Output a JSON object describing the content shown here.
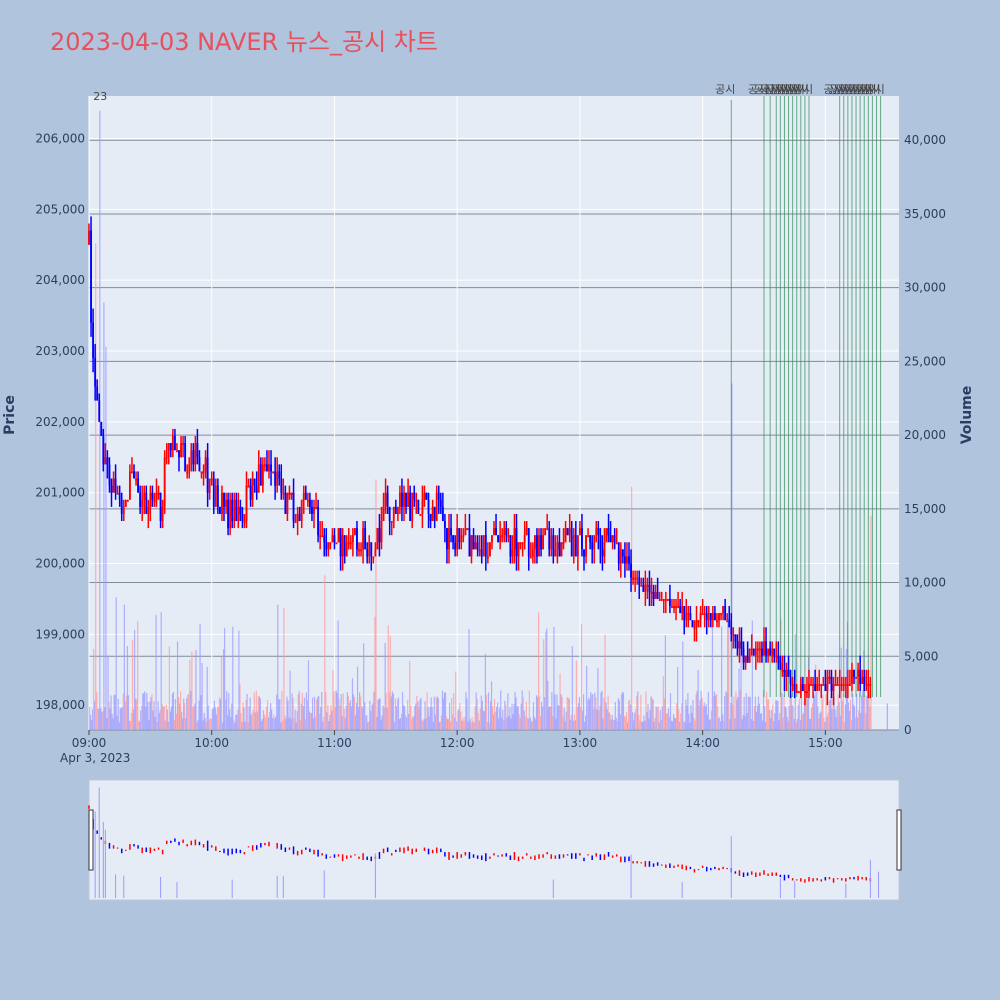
{
  "title": "2023-04-03 NAVER 뉴스_공시 차트",
  "chart_data": {
    "type": "candlestick",
    "title": "2023-04-03 NAVER 뉴스_공시 차트",
    "ylabel": "Price",
    "y2label": "Volume",
    "date_label": "Apr 3, 2023",
    "xlim": [
      "09:00",
      "15:36"
    ],
    "ylim": [
      197650,
      206600
    ],
    "y2lim": [
      0,
      43000
    ],
    "x_ticks": [
      "09:00",
      "10:00",
      "11:00",
      "12:00",
      "13:00",
      "14:00",
      "15:00"
    ],
    "y_ticks": [
      "198,000",
      "199,000",
      "200,000",
      "201,000",
      "202,000",
      "203,000",
      "204,000",
      "205,000",
      "206,000"
    ],
    "y2_ticks": [
      "0",
      "5,000",
      "10,000",
      "15,000",
      "20,000",
      "25,000",
      "30,000",
      "35,000",
      "40,000"
    ],
    "up_color": "#ff0000",
    "down_color": "#0000ff",
    "price_anchors": [
      [
        "09:00",
        204500
      ],
      [
        "09:01",
        203500
      ],
      [
        "09:02",
        203000
      ],
      [
        "09:04",
        202300
      ],
      [
        "09:06",
        201800
      ],
      [
        "09:10",
        201200
      ],
      [
        "09:15",
        200800
      ],
      [
        "09:20",
        201200
      ],
      [
        "09:25",
        200800
      ],
      [
        "09:35",
        200800
      ],
      [
        "09:38",
        201500
      ],
      [
        "09:42",
        201800
      ],
      [
        "09:48",
        201500
      ],
      [
        "09:55",
        201500
      ],
      [
        "10:00",
        201000
      ],
      [
        "10:08",
        200700
      ],
      [
        "10:15",
        200700
      ],
      [
        "10:22",
        201200
      ],
      [
        "10:30",
        201200
      ],
      [
        "10:38",
        200800
      ],
      [
        "10:50",
        200800
      ],
      [
        "10:55",
        200300
      ],
      [
        "11:05",
        200300
      ],
      [
        "11:20",
        200300
      ],
      [
        "11:25",
        200800
      ],
      [
        "11:50",
        200800
      ],
      [
        "11:55",
        200300
      ],
      [
        "13:00",
        200300
      ],
      [
        "13:18",
        200300
      ],
      [
        "13:25",
        199900
      ],
      [
        "13:35",
        199600
      ],
      [
        "13:45",
        199400
      ],
      [
        "13:55",
        199200
      ],
      [
        "14:05",
        199300
      ],
      [
        "14:10",
        199300
      ],
      [
        "14:15",
        199000
      ],
      [
        "14:20",
        198700
      ],
      [
        "14:30",
        198800
      ],
      [
        "14:35",
        198700
      ],
      [
        "14:40",
        198500
      ],
      [
        "14:45",
        198200
      ],
      [
        "14:55",
        198300
      ],
      [
        "15:05",
        198300
      ],
      [
        "15:15",
        198400
      ],
      [
        "15:22",
        198300
      ]
    ],
    "annotations": [
      {
        "time": "09:06",
        "text": "23",
        "kind": "news"
      },
      {
        "time": "14:14",
        "text": "공시",
        "kind": "disclosure"
      },
      {
        "time": "14:30",
        "text": "공시",
        "kind": "disclosure"
      },
      {
        "time": "14:33",
        "text": "공시",
        "kind": "disclosure"
      },
      {
        "time": "14:36",
        "text": "공시",
        "kind": "disclosure"
      },
      {
        "time": "14:38",
        "text": "공시",
        "kind": "disclosure"
      },
      {
        "time": "14:40",
        "text": "공시",
        "kind": "disclosure"
      },
      {
        "time": "14:42",
        "text": "공시",
        "kind": "disclosure"
      },
      {
        "time": "14:44",
        "text": "공시",
        "kind": "disclosure"
      },
      {
        "time": "14:46",
        "text": "공시",
        "kind": "disclosure"
      },
      {
        "time": "14:48",
        "text": "공시",
        "kind": "disclosure"
      },
      {
        "time": "14:50",
        "text": "공시",
        "kind": "disclosure"
      },
      {
        "time": "14:52",
        "text": "공시",
        "kind": "disclosure"
      },
      {
        "time": "15:07",
        "text": "공시",
        "kind": "disclosure"
      },
      {
        "time": "15:09",
        "text": "공시",
        "kind": "disclosure"
      },
      {
        "time": "15:11",
        "text": "공시",
        "kind": "disclosure"
      },
      {
        "time": "15:13",
        "text": "공시",
        "kind": "disclosure"
      },
      {
        "time": "15:15",
        "text": "공시",
        "kind": "disclosure"
      },
      {
        "time": "15:17",
        "text": "공시",
        "kind": "disclosure"
      },
      {
        "time": "15:19",
        "text": "공시",
        "kind": "disclosure"
      },
      {
        "time": "15:21",
        "text": "공시",
        "kind": "disclosure"
      },
      {
        "time": "15:23",
        "text": "공시",
        "kind": "disclosure"
      },
      {
        "time": "15:25",
        "text": "공시",
        "kind": "disclosure"
      },
      {
        "time": "15:27",
        "text": "공시",
        "kind": "disclosure"
      }
    ],
    "volume_spikes": [
      [
        "09:03",
        33000
      ],
      [
        "09:05",
        42000
      ],
      [
        "09:07",
        29000
      ],
      [
        "09:08",
        26000
      ],
      [
        "09:13",
        9000
      ],
      [
        "09:17",
        8500
      ],
      [
        "09:35",
        8000
      ],
      [
        "09:43",
        6000
      ],
      [
        "10:10",
        7000
      ],
      [
        "10:32",
        8500
      ],
      [
        "10:35",
        8300
      ],
      [
        "10:55",
        10500
      ],
      [
        "11:20",
        17000
      ],
      [
        "12:47",
        7000
      ],
      [
        "13:25",
        16500
      ],
      [
        "13:50",
        6000
      ],
      [
        "14:14",
        23500
      ],
      [
        "14:38",
        7500
      ],
      [
        "14:45",
        6500
      ],
      [
        "15:10",
        5500
      ],
      [
        "15:22",
        14500
      ],
      [
        "15:26",
        10000
      ]
    ]
  }
}
